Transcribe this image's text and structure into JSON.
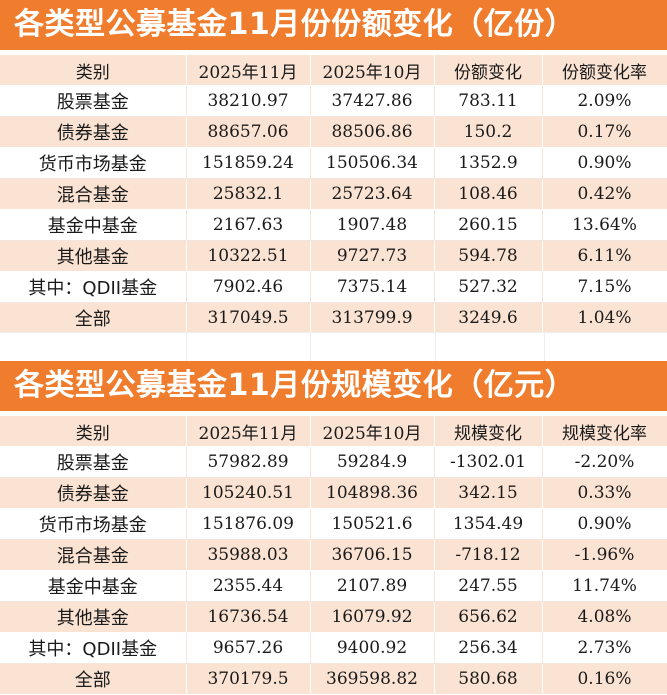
{
  "table1": {
    "title": "各类型公募基金11月份份额变化（亿份）",
    "headers": [
      "类别",
      "2025年11月",
      "2025年10月",
      "份额变化",
      "份额变化率"
    ],
    "rows": [
      [
        "股票基金",
        "38210.97",
        "37427.86",
        "783.11",
        "2.09%"
      ],
      [
        "债券基金",
        "88657.06",
        "88506.86",
        "150.2",
        "0.17%"
      ],
      [
        "货币市场基金",
        "151859.24",
        "150506.34",
        "1352.9",
        "0.90%"
      ],
      [
        "混合基金",
        "25832.1",
        "25723.64",
        "108.46",
        "0.42%"
      ],
      [
        "基金中基金",
        "2167.63",
        "1907.48",
        "260.15",
        "13.64%"
      ],
      [
        "其他基金",
        "10322.51",
        "9727.73",
        "594.78",
        "6.11%"
      ],
      [
        "其中：QDII基金",
        "7902.46",
        "7375.14",
        "527.32",
        "7.15%"
      ],
      [
        "全部",
        "317049.5",
        "313799.9",
        "3249.6",
        "1.04%"
      ]
    ]
  },
  "table2": {
    "title": "各类型公募基金11月份规模变化（亿元）",
    "headers": [
      "类别",
      "2025年11月",
      "2025年10月",
      "规模变化",
      "规模变化率"
    ],
    "rows": [
      [
        "股票基金",
        "57982.89",
        "59284.9",
        "-1302.01",
        "-2.20%"
      ],
      [
        "债券基金",
        "105240.51",
        "104898.36",
        "342.15",
        "0.33%"
      ],
      [
        "货币市场基金",
        "151876.09",
        "150521.6",
        "1354.49",
        "0.90%"
      ],
      [
        "混合基金",
        "35988.03",
        "36706.15",
        "-718.12",
        "-1.96%"
      ],
      [
        "基金中基金",
        "2355.44",
        "2107.89",
        "247.55",
        "11.74%"
      ],
      [
        "其他基金",
        "16736.54",
        "16079.92",
        "656.62",
        "4.08%"
      ],
      [
        "其中：QDII基金",
        "9657.26",
        "9400.92",
        "256.34",
        "2.73%"
      ],
      [
        "全部",
        "370179.5",
        "369598.82",
        "580.68",
        "0.16%"
      ]
    ]
  },
  "colors": {
    "title_bg": "#ef7d2d",
    "title_text": "#ffffff",
    "stripe": "#fbe3d3",
    "row_bg": "#ffffff"
  }
}
